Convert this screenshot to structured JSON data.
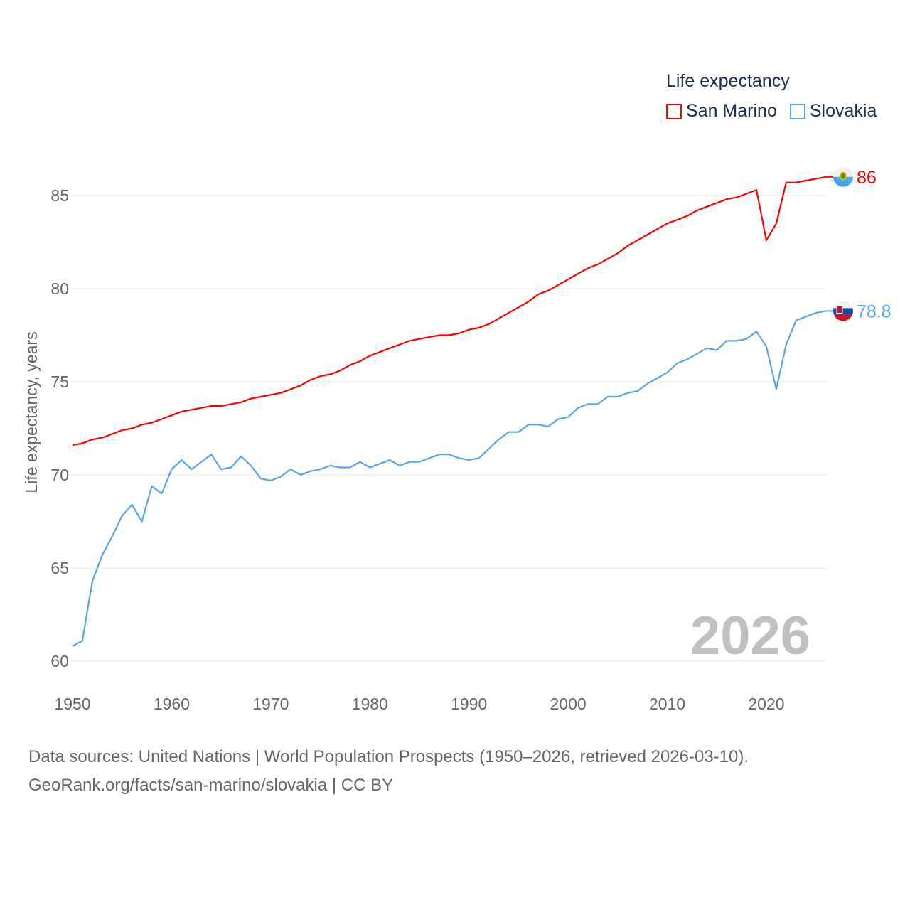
{
  "chart_data": {
    "type": "line",
    "ylabel": "Life expectancy, years",
    "xlabel": "",
    "xlim": [
      1950,
      2026
    ],
    "ylim": [
      58.5,
      88
    ],
    "x_ticks": [
      1950,
      1960,
      1970,
      1980,
      1990,
      2000,
      2010,
      2020
    ],
    "y_ticks": [
      60,
      65,
      70,
      75,
      80,
      85
    ],
    "grid": true,
    "legend_title": "Life expectancy",
    "legend_placement": "top-right",
    "year_label": "2026",
    "x": [
      1950,
      1951,
      1952,
      1953,
      1954,
      1955,
      1956,
      1957,
      1958,
      1959,
      1960,
      1961,
      1962,
      1963,
      1964,
      1965,
      1966,
      1967,
      1968,
      1969,
      1970,
      1971,
      1972,
      1973,
      1974,
      1975,
      1976,
      1977,
      1978,
      1979,
      1980,
      1981,
      1982,
      1983,
      1984,
      1985,
      1986,
      1987,
      1988,
      1989,
      1990,
      1991,
      1992,
      1993,
      1994,
      1995,
      1996,
      1997,
      1998,
      1999,
      2000,
      2001,
      2002,
      2003,
      2004,
      2005,
      2006,
      2007,
      2008,
      2009,
      2010,
      2011,
      2012,
      2013,
      2014,
      2015,
      2016,
      2017,
      2018,
      2019,
      2020,
      2021,
      2022,
      2023,
      2024,
      2025,
      2026
    ],
    "series": [
      {
        "name": "San Marino",
        "color": "#ff0000",
        "end_label": "86",
        "values": [
          71.6,
          71.7,
          71.9,
          72.0,
          72.2,
          72.4,
          72.5,
          72.7,
          72.8,
          73.0,
          73.2,
          73.4,
          73.5,
          73.6,
          73.7,
          73.7,
          73.8,
          73.9,
          74.1,
          74.2,
          74.3,
          74.4,
          74.6,
          74.8,
          75.1,
          75.3,
          75.4,
          75.6,
          75.9,
          76.1,
          76.4,
          76.6,
          76.8,
          77.0,
          77.2,
          77.3,
          77.4,
          77.5,
          77.5,
          77.6,
          77.8,
          77.9,
          78.1,
          78.4,
          78.7,
          79.0,
          79.3,
          79.7,
          79.9,
          80.2,
          80.5,
          80.8,
          81.1,
          81.3,
          81.6,
          81.9,
          82.3,
          82.6,
          82.9,
          83.2,
          83.5,
          83.7,
          83.9,
          84.2,
          84.4,
          84.6,
          84.8,
          84.9,
          85.1,
          85.3,
          82.6,
          83.5,
          85.7,
          85.7,
          85.8,
          85.9,
          86.0
        ]
      },
      {
        "name": "Slovakia",
        "color": "#5ba4ea",
        "end_label": "78.8",
        "values": [
          60.8,
          61.1,
          64.3,
          65.7,
          66.7,
          67.8,
          68.4,
          67.5,
          69.4,
          69.0,
          70.3,
          70.8,
          70.3,
          70.7,
          71.1,
          70.3,
          70.4,
          71.0,
          70.5,
          69.8,
          69.7,
          69.9,
          70.3,
          70.0,
          70.2,
          70.3,
          70.5,
          70.4,
          70.4,
          70.7,
          70.4,
          70.6,
          70.8,
          70.5,
          70.7,
          70.7,
          70.9,
          71.1,
          71.1,
          70.9,
          70.8,
          70.9,
          71.4,
          71.9,
          72.3,
          72.3,
          72.7,
          72.7,
          72.6,
          73.0,
          73.1,
          73.6,
          73.8,
          73.8,
          74.2,
          74.2,
          74.4,
          74.5,
          74.9,
          75.2,
          75.5,
          76.0,
          76.2,
          76.5,
          76.8,
          76.7,
          77.2,
          77.2,
          77.3,
          77.7,
          76.9,
          74.6,
          77.0,
          78.3,
          78.5,
          78.7,
          78.8
        ]
      }
    ]
  },
  "footer": {
    "line1": "Data sources: United Nations | World Population Prospects (1950–2026, retrieved 2026-03-10).",
    "line2": "GeoRank.org/facts/san-marino/slovakia | CC BY"
  }
}
